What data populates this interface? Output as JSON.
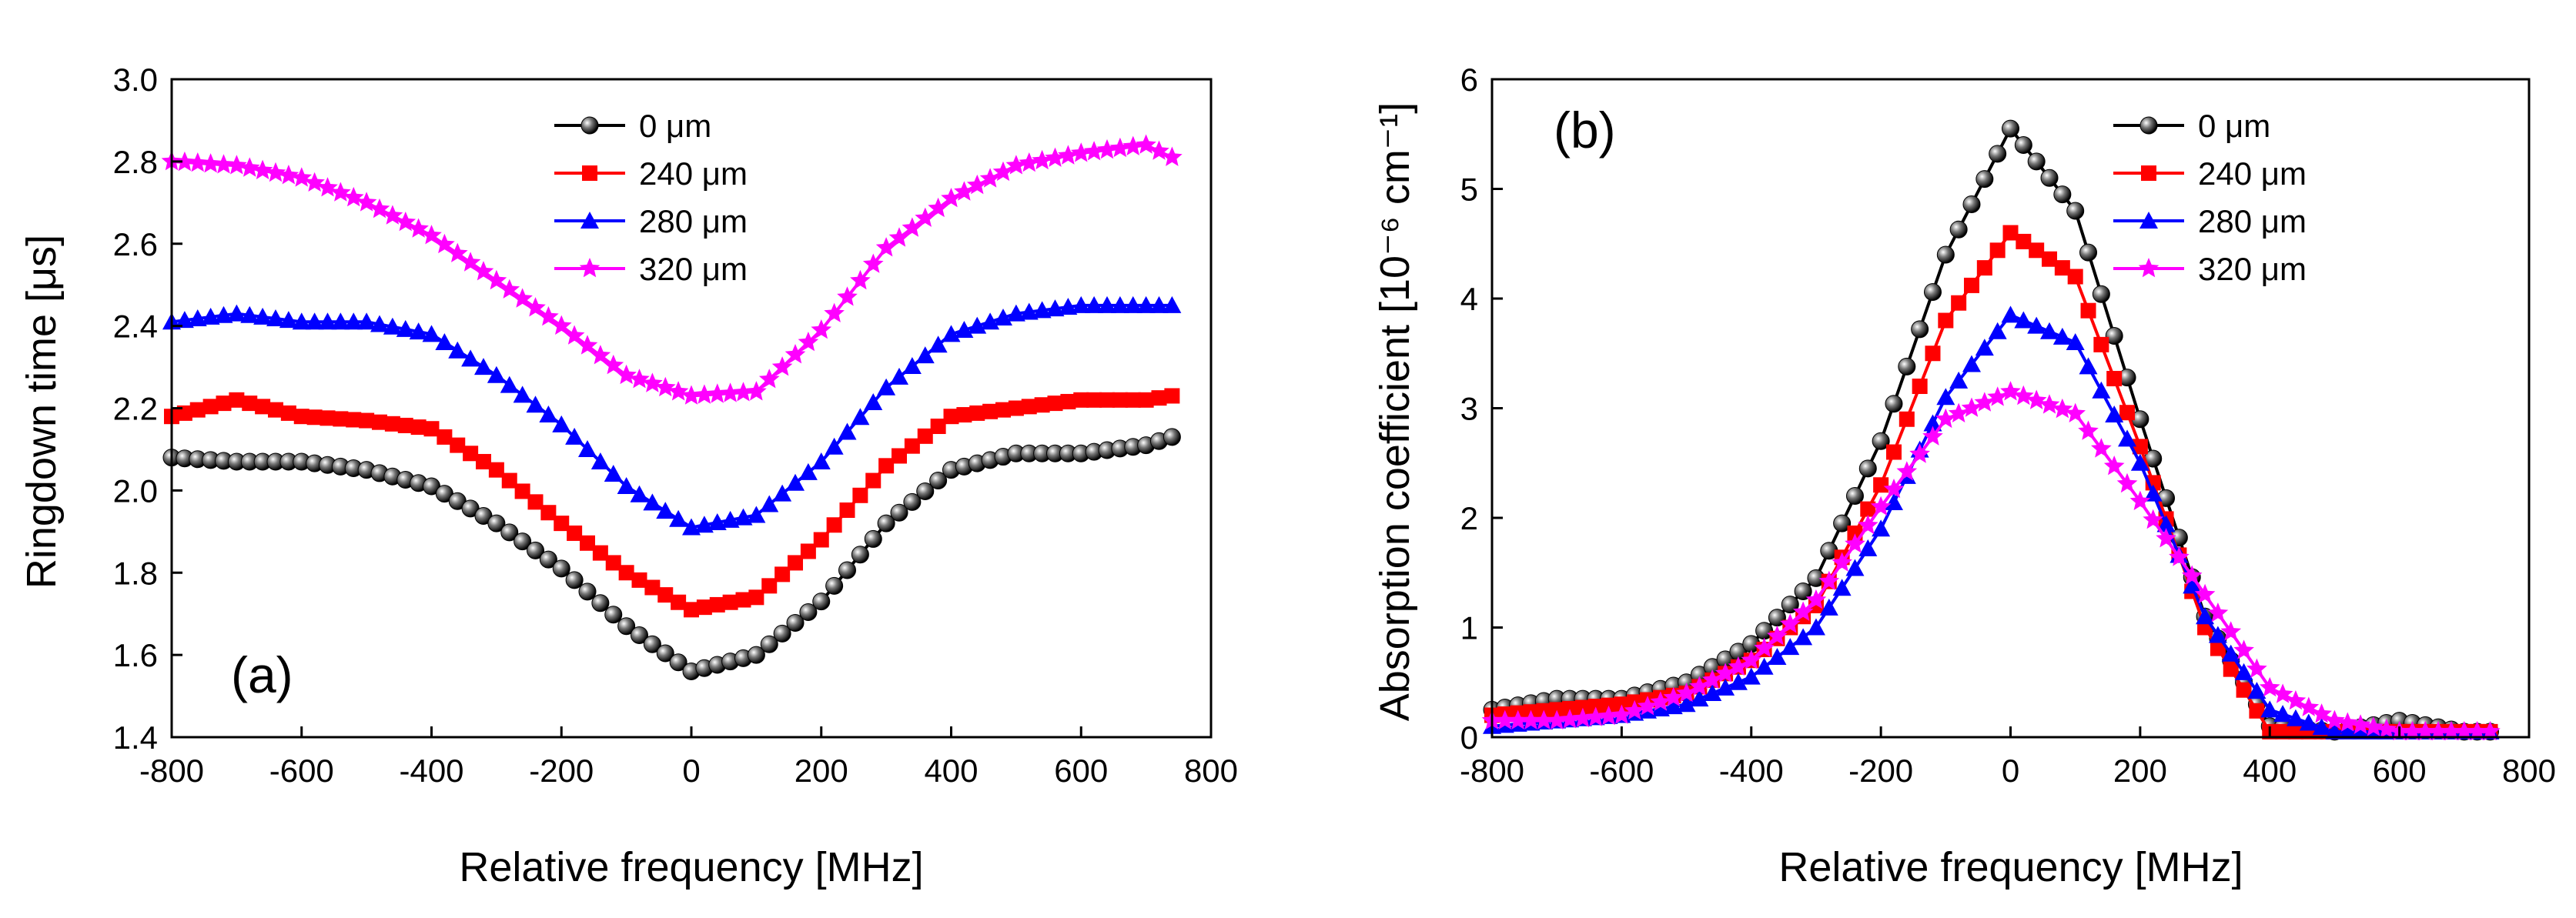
{
  "chart_data": [
    {
      "type": "line",
      "panel_label": "(a)",
      "xlabel": "Relative frequency [MHz]",
      "ylabel": "Ringdown time [μs]",
      "xlim": [
        -800,
        800
      ],
      "ylim": [
        1.4,
        3.0
      ],
      "xticks": [
        -800,
        -600,
        -400,
        -200,
        0,
        200,
        400,
        600,
        800
      ],
      "yticks": [
        1.4,
        1.6,
        1.8,
        2.0,
        2.2,
        2.4,
        2.6,
        2.8,
        3.0
      ],
      "ytick_decimals": 1,
      "legend_position": "top-center",
      "x": [
        -800,
        -700,
        -600,
        -500,
        -400,
        -300,
        -200,
        -100,
        0,
        100,
        200,
        300,
        400,
        500,
        600,
        700,
        740
      ],
      "series": [
        {
          "name": "0 μm",
          "color": "#000000",
          "marker": "sphere",
          "values": [
            2.08,
            2.07,
            2.07,
            2.05,
            2.01,
            1.92,
            1.81,
            1.67,
            1.56,
            1.6,
            1.73,
            1.92,
            2.05,
            2.09,
            2.09,
            2.11,
            2.13
          ]
        },
        {
          "name": "240 μm",
          "color": "#ff0000",
          "marker": "square",
          "values": [
            2.18,
            2.22,
            2.18,
            2.17,
            2.15,
            2.05,
            1.92,
            1.8,
            1.71,
            1.74,
            1.88,
            2.06,
            2.18,
            2.2,
            2.22,
            2.22,
            2.23
          ]
        },
        {
          "name": "280 μm",
          "color": "#0000ff",
          "marker": "triangle",
          "values": [
            2.41,
            2.43,
            2.41,
            2.41,
            2.38,
            2.28,
            2.16,
            2.01,
            1.91,
            1.94,
            2.07,
            2.25,
            2.38,
            2.43,
            2.45,
            2.45,
            2.45
          ]
        },
        {
          "name": "320 μm",
          "color": "#ff00ff",
          "marker": "star",
          "values": [
            2.8,
            2.79,
            2.76,
            2.7,
            2.62,
            2.51,
            2.4,
            2.28,
            2.23,
            2.24,
            2.39,
            2.59,
            2.71,
            2.79,
            2.82,
            2.84,
            2.81
          ]
        }
      ]
    },
    {
      "type": "line",
      "panel_label": "(b)",
      "xlabel": "Relative frequency [MHz]",
      "ylabel": "Absorption coefficient [10⁻⁶ cm⁻¹]",
      "xlim": [
        -800,
        800
      ],
      "ylim": [
        0,
        6
      ],
      "xticks": [
        -800,
        -600,
        -400,
        -200,
        0,
        200,
        400,
        600,
        800
      ],
      "yticks": [
        0,
        1,
        2,
        3,
        4,
        5,
        6
      ],
      "ytick_decimals": 0,
      "legend_position": "top-right",
      "x": [
        -800,
        -700,
        -600,
        -500,
        -400,
        -300,
        -200,
        -100,
        0,
        100,
        200,
        300,
        400,
        500,
        600,
        700,
        740
      ],
      "series": [
        {
          "name": "0 μm",
          "color": "#000000",
          "marker": "sphere",
          "values": [
            0.25,
            0.35,
            0.35,
            0.5,
            0.85,
            1.45,
            2.7,
            4.4,
            5.55,
            4.8,
            2.9,
            1.1,
            0.1,
            0.05,
            0.15,
            0.05,
            0.05
          ]
        },
        {
          "name": "240 μm",
          "color": "#ff0000",
          "marker": "square",
          "values": [
            0.2,
            0.25,
            0.3,
            0.4,
            0.7,
            1.2,
            2.3,
            3.8,
            4.6,
            4.2,
            2.65,
            1.0,
            0.05,
            0.05,
            0.05,
            0.05,
            0.05
          ]
        },
        {
          "name": "280 μm",
          "color": "#0000ff",
          "marker": "triangle",
          "values": [
            0.1,
            0.15,
            0.2,
            0.3,
            0.55,
            1.0,
            1.9,
            3.1,
            3.85,
            3.6,
            2.5,
            1.1,
            0.25,
            0.05,
            0.05,
            0.05,
            0.05
          ]
        },
        {
          "name": "320 μm",
          "color": "#ff00ff",
          "marker": "star",
          "values": [
            0.15,
            0.15,
            0.2,
            0.4,
            0.7,
            1.25,
            2.1,
            2.9,
            3.15,
            2.95,
            2.15,
            1.3,
            0.45,
            0.15,
            0.05,
            0.05,
            0.05
          ]
        }
      ]
    }
  ]
}
